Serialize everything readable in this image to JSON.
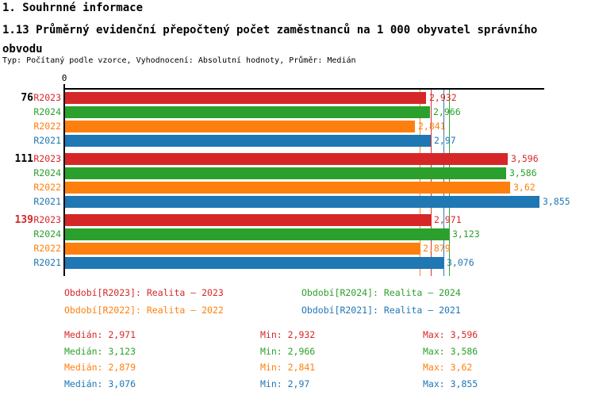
{
  "header": {
    "title1": "1. Souhrnné informace",
    "title2": "1.13 Průměrný evidenční přepočtený počet zaměstnanců na 1 000 obyvatel správního obvodu",
    "subtitle": "Typ: Počítaný podle vzorce, Vyhodnocení: Absolutní hodnoty, Průměr: Medián"
  },
  "colors": {
    "R2023": "#d62728",
    "R2024": "#2ca02c",
    "R2022": "#ff7f0e",
    "R2021": "#1f77b4",
    "axis": "#000000",
    "background": "#ffffff"
  },
  "chart_data": {
    "type": "bar",
    "orientation": "horizontal",
    "axis_origin_label": "0",
    "axis_max": 3.888,
    "grid": false,
    "series_order": [
      "R2023",
      "R2024",
      "R2022",
      "R2021"
    ],
    "groups": [
      {
        "label": "76",
        "label_color": "#000000",
        "rows": [
          {
            "series": "R2023",
            "value": 2.932,
            "display": "2,932"
          },
          {
            "series": "R2024",
            "value": 2.966,
            "display": "2,966"
          },
          {
            "series": "R2022",
            "value": 2.841,
            "display": "2,841"
          },
          {
            "series": "R2021",
            "value": 2.97,
            "display": "2,97"
          }
        ]
      },
      {
        "label": "111",
        "label_color": "#000000",
        "rows": [
          {
            "series": "R2023",
            "value": 3.596,
            "display": "3,596"
          },
          {
            "series": "R2024",
            "value": 3.586,
            "display": "3,586"
          },
          {
            "series": "R2022",
            "value": 3.62,
            "display": "3,62"
          },
          {
            "series": "R2021",
            "value": 3.855,
            "display": "3,855"
          }
        ]
      },
      {
        "label": "139",
        "label_color": "#d62728",
        "rows": [
          {
            "series": "R2023",
            "value": 2.971,
            "display": "2,971"
          },
          {
            "series": "R2024",
            "value": 3.123,
            "display": "3,123"
          },
          {
            "series": "R2022",
            "value": 2.879,
            "display": "2,879"
          },
          {
            "series": "R2021",
            "value": 3.076,
            "display": "3,076"
          }
        ]
      }
    ],
    "median_lines": [
      {
        "series": "R2022",
        "value": 2.879
      },
      {
        "series": "R2023",
        "value": 2.971
      },
      {
        "series": "R2021",
        "value": 3.076
      },
      {
        "series": "R2024",
        "value": 3.123
      }
    ],
    "legend": [
      {
        "series": "R2023",
        "text": "Období[R2023]: Realita – 2023",
        "col": 0,
        "row": 0
      },
      {
        "series": "R2024",
        "text": "Období[R2024]: Realita – 2024",
        "col": 1,
        "row": 0
      },
      {
        "series": "R2022",
        "text": "Období[R2022]: Realita – 2022",
        "col": 0,
        "row": 1
      },
      {
        "series": "R2021",
        "text": "Období[R2021]: Realita – 2021",
        "col": 1,
        "row": 1
      }
    ],
    "stats_labels": {
      "median": "Medián:",
      "min": "Min:",
      "max": "Max:"
    },
    "stats": [
      {
        "series": "R2023",
        "median": "2,971",
        "min": "2,932",
        "max": "3,596"
      },
      {
        "series": "R2024",
        "median": "3,123",
        "min": "2,966",
        "max": "3,586"
      },
      {
        "series": "R2022",
        "median": "2,879",
        "min": "2,841",
        "max": "3,62"
      },
      {
        "series": "R2021",
        "median": "3,076",
        "min": "2,97",
        "max": "3,855"
      }
    ]
  }
}
